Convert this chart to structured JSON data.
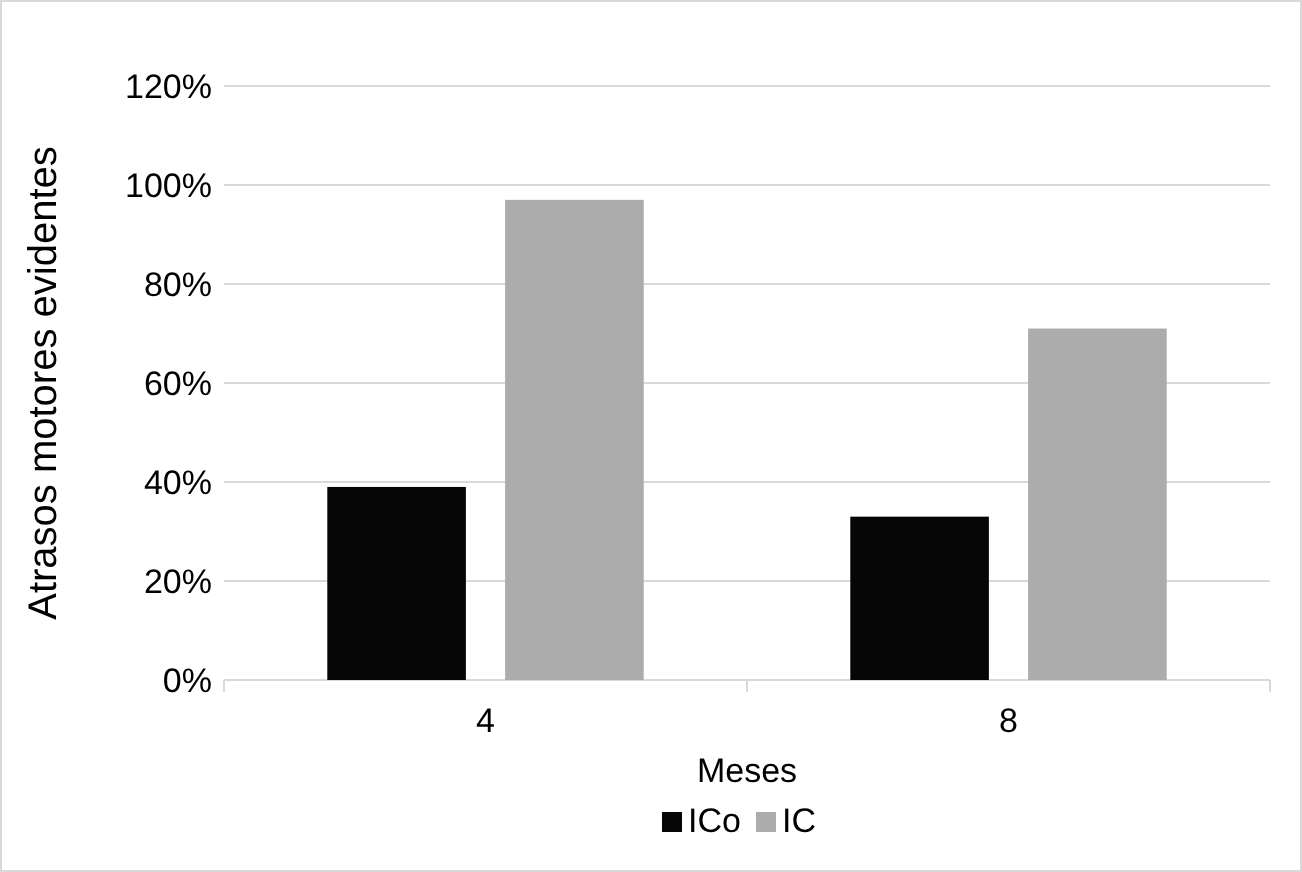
{
  "chart_data": {
    "type": "bar",
    "xlabel": "Meses",
    "ylabel": "Atrasos motores evidentes",
    "categories": [
      "4",
      "8"
    ],
    "series": [
      {
        "name": "ICo",
        "color": "#060606",
        "values": [
          39,
          33
        ]
      },
      {
        "name": "IC",
        "color": "#acacac",
        "values": [
          97,
          71
        ]
      }
    ],
    "ylim": [
      0,
      120
    ],
    "yticks": [
      {
        "value": 0,
        "label": "0%"
      },
      {
        "value": 20,
        "label": "20%"
      },
      {
        "value": 40,
        "label": "40%"
      },
      {
        "value": 60,
        "label": "60%"
      },
      {
        "value": 80,
        "label": "80%"
      },
      {
        "value": 100,
        "label": "100%"
      },
      {
        "value": 120,
        "label": "120%"
      }
    ],
    "grid": "y",
    "legend": "bottom"
  }
}
